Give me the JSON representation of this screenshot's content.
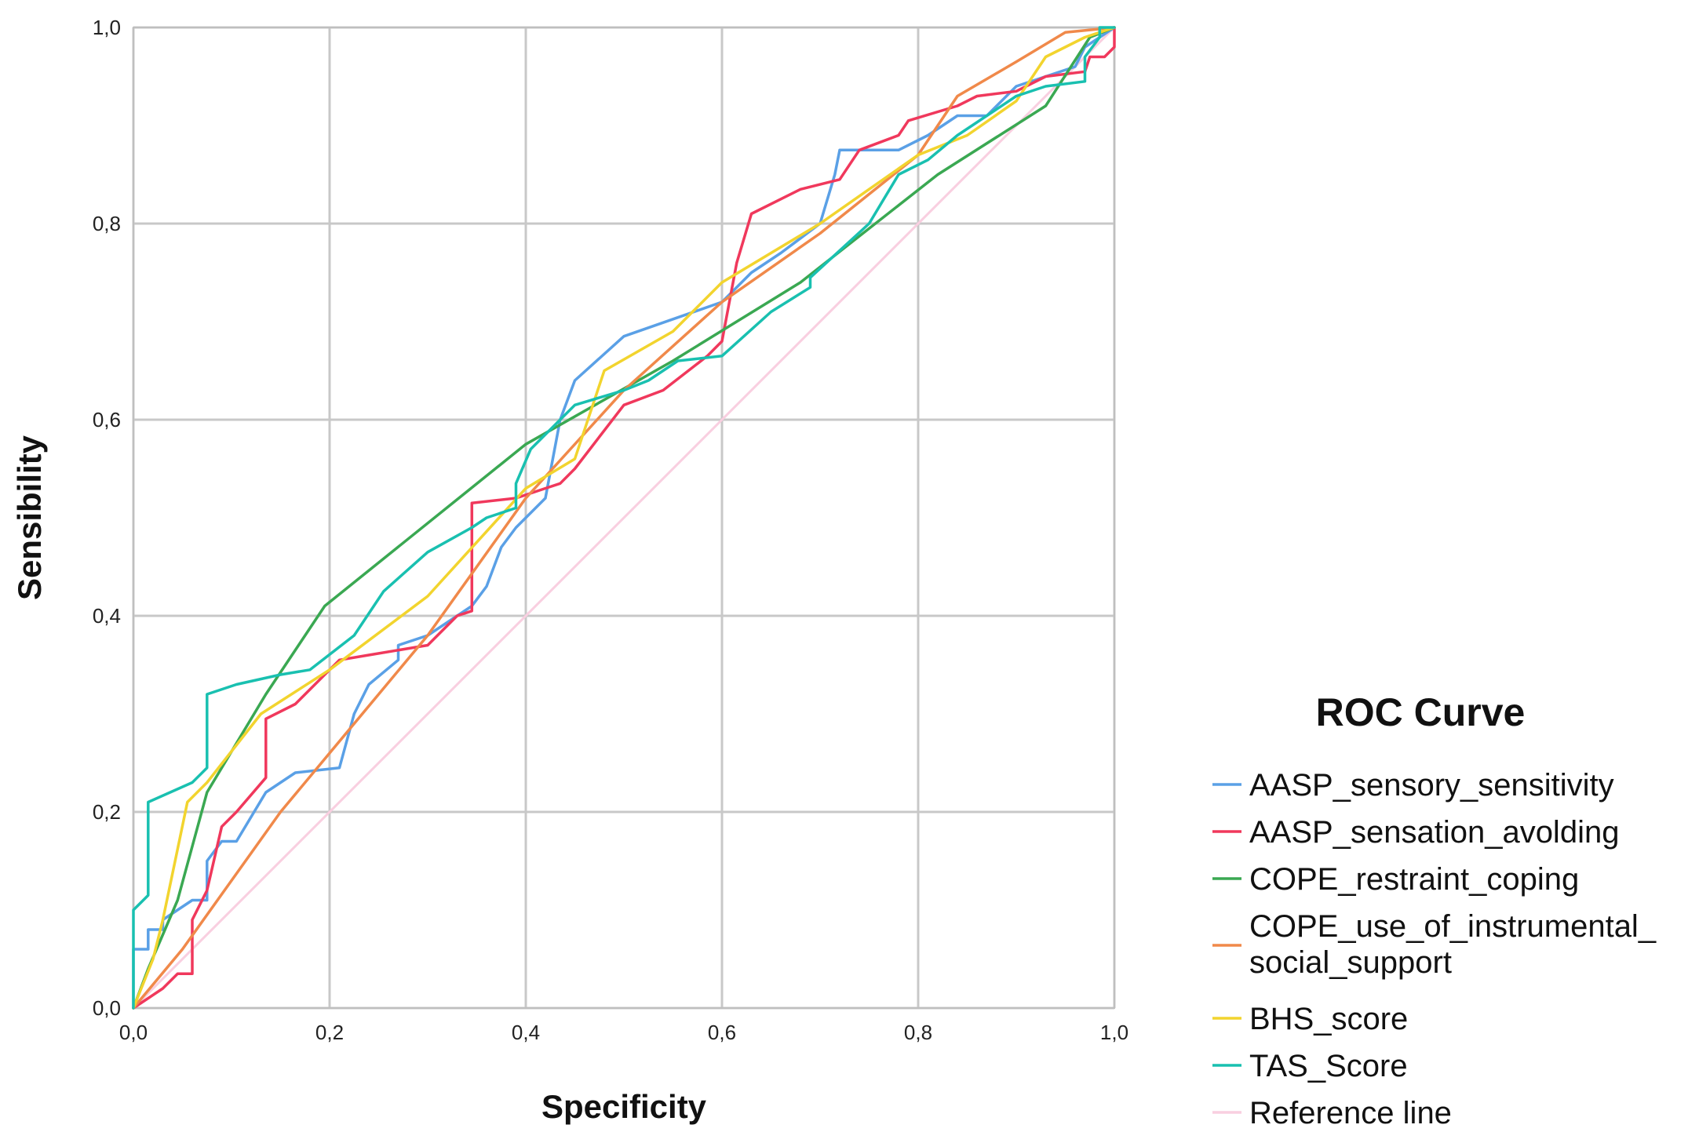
{
  "chart_data": {
    "type": "line",
    "title": "ROC Curve",
    "xlabel": "Specificity",
    "ylabel": "Sensibility",
    "xlim": [
      0,
      1
    ],
    "ylim": [
      0,
      1
    ],
    "grid": true,
    "legend_position": "right",
    "x_tick_labels": [
      "0,0",
      "0,2",
      "0,4",
      "0,6",
      "0,8",
      "1,0"
    ],
    "y_tick_labels": [
      "0,0",
      "0,2",
      "0,4",
      "0,6",
      "0,8",
      "1,0"
    ],
    "series": [
      {
        "name": "AASP_sensory_sensitivity",
        "color": "#5aa0e6",
        "points": [
          [
            0,
            0
          ],
          [
            0,
            0.06
          ],
          [
            0.015,
            0.06
          ],
          [
            0.015,
            0.08
          ],
          [
            0.03,
            0.08
          ],
          [
            0.03,
            0.09
          ],
          [
            0.06,
            0.11
          ],
          [
            0.075,
            0.11
          ],
          [
            0.075,
            0.15
          ],
          [
            0.09,
            0.17
          ],
          [
            0.105,
            0.17
          ],
          [
            0.135,
            0.22
          ],
          [
            0.165,
            0.24
          ],
          [
            0.21,
            0.245
          ],
          [
            0.225,
            0.3
          ],
          [
            0.24,
            0.33
          ],
          [
            0.27,
            0.355
          ],
          [
            0.27,
            0.37
          ],
          [
            0.3,
            0.38
          ],
          [
            0.345,
            0.41
          ],
          [
            0.36,
            0.43
          ],
          [
            0.375,
            0.47
          ],
          [
            0.39,
            0.49
          ],
          [
            0.42,
            0.52
          ],
          [
            0.435,
            0.6
          ],
          [
            0.45,
            0.64
          ],
          [
            0.5,
            0.685
          ],
          [
            0.6,
            0.72
          ],
          [
            0.63,
            0.75
          ],
          [
            0.66,
            0.77
          ],
          [
            0.7,
            0.8
          ],
          [
            0.715,
            0.85
          ],
          [
            0.72,
            0.875
          ],
          [
            0.78,
            0.875
          ],
          [
            0.81,
            0.89
          ],
          [
            0.84,
            0.91
          ],
          [
            0.87,
            0.91
          ],
          [
            0.9,
            0.94
          ],
          [
            0.93,
            0.95
          ],
          [
            0.96,
            0.96
          ],
          [
            0.97,
            0.98
          ],
          [
            0.985,
            0.99
          ],
          [
            1,
            1
          ]
        ]
      },
      {
        "name": "AASP_sensation_avolding",
        "color": "#f0385c",
        "points": [
          [
            0,
            0
          ],
          [
            0.015,
            0.01
          ],
          [
            0.03,
            0.02
          ],
          [
            0.045,
            0.035
          ],
          [
            0.06,
            0.035
          ],
          [
            0.06,
            0.09
          ],
          [
            0.075,
            0.12
          ],
          [
            0.09,
            0.185
          ],
          [
            0.105,
            0.2
          ],
          [
            0.135,
            0.235
          ],
          [
            0.135,
            0.295
          ],
          [
            0.165,
            0.31
          ],
          [
            0.21,
            0.355
          ],
          [
            0.24,
            0.36
          ],
          [
            0.3,
            0.37
          ],
          [
            0.33,
            0.4
          ],
          [
            0.345,
            0.405
          ],
          [
            0.345,
            0.515
          ],
          [
            0.39,
            0.52
          ],
          [
            0.42,
            0.53
          ],
          [
            0.435,
            0.535
          ],
          [
            0.45,
            0.55
          ],
          [
            0.5,
            0.615
          ],
          [
            0.54,
            0.63
          ],
          [
            0.585,
            0.665
          ],
          [
            0.6,
            0.68
          ],
          [
            0.615,
            0.76
          ],
          [
            0.63,
            0.81
          ],
          [
            0.68,
            0.835
          ],
          [
            0.72,
            0.845
          ],
          [
            0.74,
            0.875
          ],
          [
            0.78,
            0.89
          ],
          [
            0.79,
            0.905
          ],
          [
            0.84,
            0.92
          ],
          [
            0.86,
            0.93
          ],
          [
            0.9,
            0.935
          ],
          [
            0.93,
            0.95
          ],
          [
            0.97,
            0.955
          ],
          [
            0.975,
            0.97
          ],
          [
            0.99,
            0.97
          ],
          [
            1,
            0.98
          ],
          [
            1,
            1
          ]
        ]
      },
      {
        "name": "COPE_restraint_coping",
        "color": "#3aa852",
        "points": [
          [
            0,
            0
          ],
          [
            0.015,
            0.04
          ],
          [
            0.045,
            0.11
          ],
          [
            0.075,
            0.22
          ],
          [
            0.135,
            0.32
          ],
          [
            0.195,
            0.41
          ],
          [
            0.4,
            0.575
          ],
          [
            0.55,
            0.66
          ],
          [
            0.68,
            0.74
          ],
          [
            0.82,
            0.85
          ],
          [
            0.93,
            0.92
          ],
          [
            0.975,
            0.99
          ],
          [
            1,
            1
          ]
        ]
      },
      {
        "name": "COPE_use_of_instrumental_ social_support",
        "color": "#f0894a",
        "points": [
          [
            0,
            0
          ],
          [
            0.05,
            0.06
          ],
          [
            0.1,
            0.13
          ],
          [
            0.15,
            0.2
          ],
          [
            0.2,
            0.26
          ],
          [
            0.3,
            0.38
          ],
          [
            0.4,
            0.52
          ],
          [
            0.5,
            0.63
          ],
          [
            0.6,
            0.72
          ],
          [
            0.7,
            0.79
          ],
          [
            0.8,
            0.87
          ],
          [
            0.84,
            0.93
          ],
          [
            0.9,
            0.965
          ],
          [
            0.95,
            0.995
          ],
          [
            1,
            1
          ]
        ]
      },
      {
        "name": "BHS_score",
        "color": "#f2d42e",
        "points": [
          [
            0,
            0
          ],
          [
            0.02,
            0.05
          ],
          [
            0.03,
            0.09
          ],
          [
            0.055,
            0.21
          ],
          [
            0.075,
            0.23
          ],
          [
            0.13,
            0.3
          ],
          [
            0.2,
            0.345
          ],
          [
            0.3,
            0.42
          ],
          [
            0.4,
            0.53
          ],
          [
            0.45,
            0.56
          ],
          [
            0.48,
            0.65
          ],
          [
            0.55,
            0.69
          ],
          [
            0.6,
            0.74
          ],
          [
            0.7,
            0.8
          ],
          [
            0.8,
            0.87
          ],
          [
            0.85,
            0.89
          ],
          [
            0.9,
            0.925
          ],
          [
            0.93,
            0.97
          ],
          [
            0.97,
            0.99
          ],
          [
            1,
            1
          ]
        ]
      },
      {
        "name": "TAS_Score",
        "color": "#19c0b0",
        "points": [
          [
            0,
            0
          ],
          [
            0,
            0.1
          ],
          [
            0.015,
            0.115
          ],
          [
            0.015,
            0.21
          ],
          [
            0.06,
            0.23
          ],
          [
            0.075,
            0.245
          ],
          [
            0.075,
            0.32
          ],
          [
            0.105,
            0.33
          ],
          [
            0.15,
            0.34
          ],
          [
            0.18,
            0.345
          ],
          [
            0.225,
            0.38
          ],
          [
            0.255,
            0.425
          ],
          [
            0.3,
            0.465
          ],
          [
            0.345,
            0.49
          ],
          [
            0.36,
            0.5
          ],
          [
            0.39,
            0.51
          ],
          [
            0.39,
            0.535
          ],
          [
            0.405,
            0.57
          ],
          [
            0.45,
            0.615
          ],
          [
            0.5,
            0.63
          ],
          [
            0.525,
            0.64
          ],
          [
            0.555,
            0.66
          ],
          [
            0.6,
            0.665
          ],
          [
            0.65,
            0.71
          ],
          [
            0.69,
            0.735
          ],
          [
            0.69,
            0.745
          ],
          [
            0.75,
            0.8
          ],
          [
            0.78,
            0.85
          ],
          [
            0.81,
            0.865
          ],
          [
            0.84,
            0.89
          ],
          [
            0.9,
            0.93
          ],
          [
            0.93,
            0.94
          ],
          [
            0.97,
            0.945
          ],
          [
            0.97,
            0.97
          ],
          [
            0.985,
            0.99
          ],
          [
            0.985,
            1
          ],
          [
            1,
            1
          ]
        ]
      },
      {
        "name": "Reference line",
        "color": "#f9cfe0",
        "points": [
          [
            0,
            0
          ],
          [
            1,
            1
          ]
        ]
      }
    ]
  }
}
